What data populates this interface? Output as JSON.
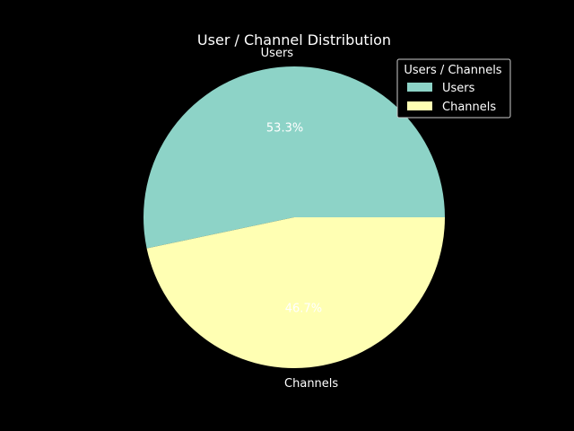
{
  "chart_data": {
    "type": "pie",
    "title": "User / Channel Distribution",
    "categories": [
      "Users",
      "Channels"
    ],
    "values": [
      53.3,
      46.7
    ],
    "percent_labels": [
      "53.3%",
      "46.7%"
    ],
    "colors": [
      "#8dd3c7",
      "#ffffb3"
    ],
    "start_angle_deg": 0,
    "direction": "counterclockwise",
    "legend": {
      "title": "Users / Channels",
      "placement": "top-right",
      "entries": [
        "Users",
        "Channels"
      ]
    },
    "background": "#000000",
    "text_color": "#ffffff"
  }
}
